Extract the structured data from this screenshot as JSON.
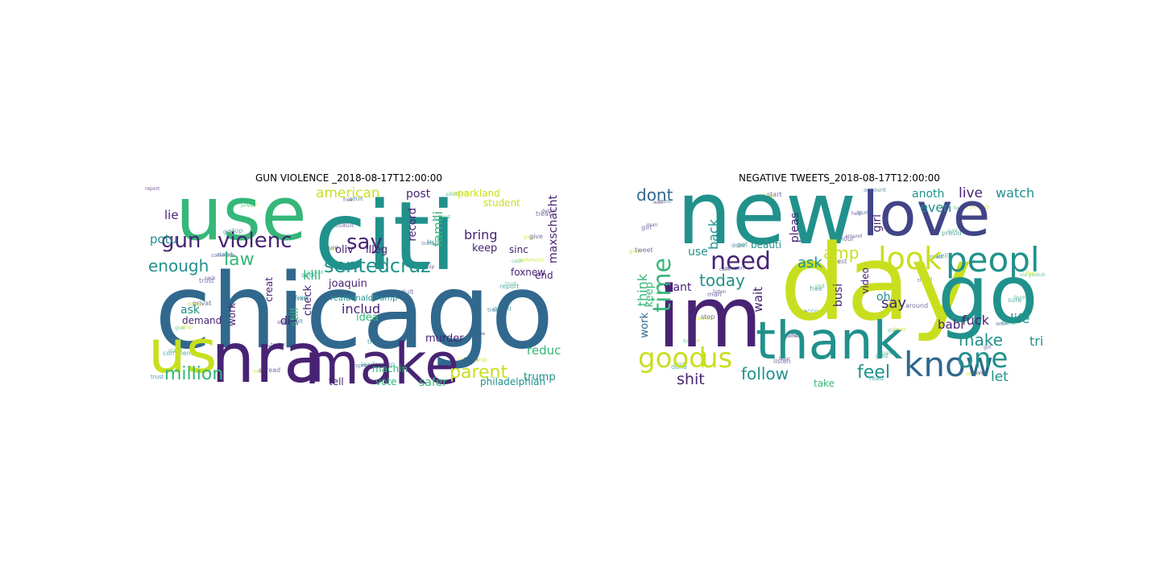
{
  "panels": [
    {
      "title": "GUN VIOLENCE _2018-08-17T12:00:00",
      "words": [
        "citi",
        "use",
        "chicago",
        "make",
        "nra",
        "us",
        "gun",
        "violenc",
        "sentedcruz",
        "million",
        "enough",
        "law",
        "say",
        "american",
        "parent",
        "includ",
        "kill",
        "post",
        "bring",
        "potu",
        "lie",
        "famili",
        "maxschacht",
        "reduc",
        "student",
        "parkland",
        "foxnew",
        "joaquin",
        "realdonaldtrump",
        "trump",
        "safer",
        "philadelphian",
        "machin",
        "vote",
        "tell",
        "demand",
        "ask",
        "work",
        "die",
        "murder",
        "idea",
        "keep",
        "end",
        "oliv",
        "illeg",
        "check",
        "record",
        "sinc",
        "creat",
        "still"
      ]
    },
    {
      "title": "NEGATIVE TWEETS_2018-08-17T12:00:00",
      "words": [
        "new",
        "day",
        "go",
        "im",
        "love",
        "thank",
        "peopl",
        "know",
        "good",
        "us",
        "look",
        "need",
        "time",
        "one",
        "make",
        "today",
        "fuck",
        "dont",
        "feel",
        "follow",
        "shit",
        "life",
        "amp",
        "live",
        "watch",
        "ask",
        "say",
        "think",
        "wait",
        "want",
        "keep",
        "back",
        "babi",
        "anoth",
        "even",
        "girl",
        "busi",
        "pleas",
        "tri",
        "use",
        "let",
        "beauti",
        "video",
        "take",
        "oh",
        "work"
      ]
    }
  ],
  "colors": {
    "purple": "#482374",
    "blue": "#31688e",
    "teal": "#21918c",
    "green": "#35b779",
    "yellow": "#c8df1f",
    "navy": "#414487"
  }
}
